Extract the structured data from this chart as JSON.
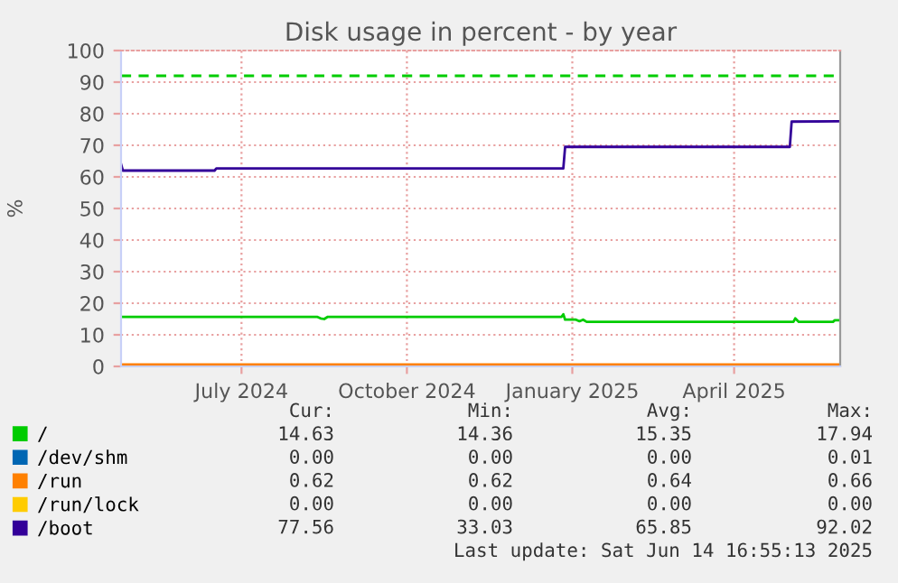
{
  "chart_data": {
    "type": "line",
    "title": "Disk usage in percent - by year",
    "ylabel": "%",
    "xlim": [
      "2024-05-10",
      "2025-06-14"
    ],
    "xticks": [
      {
        "value": "2024-07-16",
        "label": "July 2024"
      },
      {
        "value": "2024-10-16",
        "label": "October 2024"
      },
      {
        "value": "2025-01-16",
        "label": "January 2025"
      },
      {
        "value": "2025-04-16",
        "label": "April 2025"
      }
    ],
    "ylim": [
      0,
      100
    ],
    "yticks": [
      0,
      10,
      20,
      30,
      40,
      50,
      60,
      70,
      80,
      90,
      100
    ],
    "grid": true,
    "legend": "bottom",
    "marker": "none",
    "line_style": "solid",
    "ref_lines": [
      {
        "axis": "y",
        "value": 92,
        "color": "#00cc00",
        "line_style": "dashed"
      }
    ],
    "series": [
      {
        "name": "/",
        "color": "#00cc00",
        "x": [
          "2024-05-10",
          "2024-08-27",
          "2024-08-29",
          "2024-08-31",
          "2024-09-02",
          "2025-01-10",
          "2025-01-11",
          "2025-01-12",
          "2025-01-18",
          "2025-01-20",
          "2025-01-22",
          "2025-01-24",
          "2025-05-19",
          "2025-05-20",
          "2025-05-22",
          "2025-06-10",
          "2025-06-11",
          "2025-06-14"
        ],
        "values": [
          15.7,
          15.7,
          15.2,
          15.0,
          15.7,
          15.7,
          16.5,
          14.8,
          14.8,
          14.3,
          14.8,
          14.1,
          14.1,
          15.2,
          14.1,
          14.1,
          14.6,
          14.6
        ]
      },
      {
        "name": "/dev/shm",
        "color": "#0066b3"
      },
      {
        "name": "/run",
        "color": "#ff8000",
        "x": [
          "2024-05-10",
          "2025-06-14"
        ],
        "values": [
          0.6,
          0.6
        ]
      },
      {
        "name": "/run/lock",
        "color": "#ffcc00"
      },
      {
        "name": "/boot",
        "color": "#330099",
        "x": [
          "2024-05-10",
          "2024-05-11",
          "2024-07-01",
          "2024-07-02",
          "2025-01-11",
          "2025-01-12",
          "2025-05-17",
          "2025-05-18",
          "2025-06-14"
        ],
        "values": [
          64,
          62,
          62,
          62.7,
          62.7,
          69.5,
          69.5,
          77.5,
          77.6
        ]
      }
    ],
    "annotations": [
      "Cur:",
      "Min:",
      "Avg:",
      "Max:",
      "14.63",
      "14.36",
      "15.35",
      "17.94",
      "0.00",
      "0.00",
      "0.00",
      "0.01",
      "0.62",
      "0.62",
      "0.64",
      "0.66",
      "0.00",
      "0.00",
      "0.00",
      "0.00",
      "77.56",
      "33.03",
      "65.85",
      "92.02",
      "Last update: Sat Jun 14 16:55:13 2025"
    ]
  }
}
